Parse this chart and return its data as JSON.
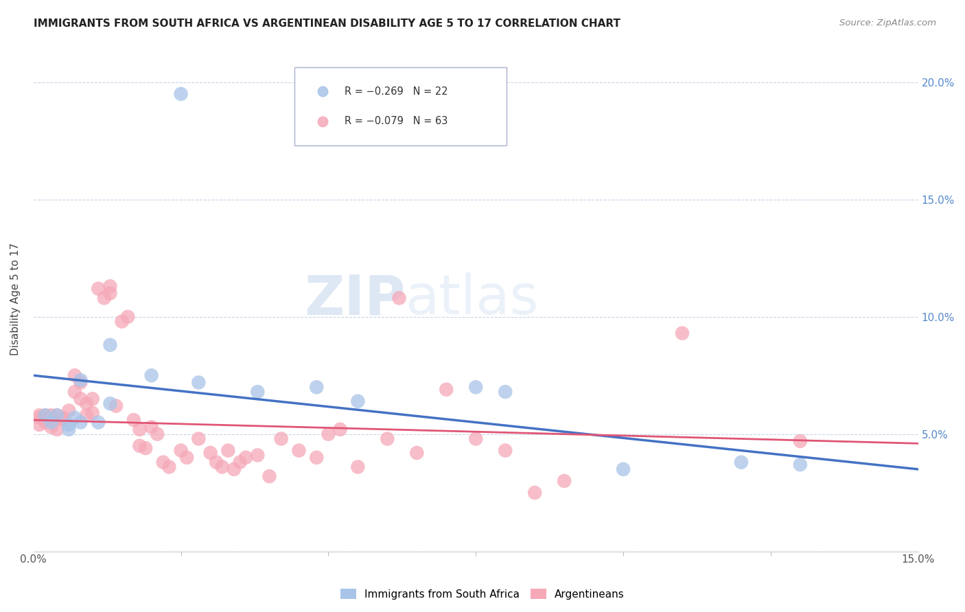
{
  "title": "IMMIGRANTS FROM SOUTH AFRICA VS ARGENTINEAN DISABILITY AGE 5 TO 17 CORRELATION CHART",
  "source": "Source: ZipAtlas.com",
  "ylabel": "Disability Age 5 to 17",
  "xlim": [
    0.0,
    0.15
  ],
  "ylim": [
    0.0,
    0.215
  ],
  "xticks": [
    0.0,
    0.15
  ],
  "xtick_labels": [
    "0.0%",
    "15.0%"
  ],
  "xticks_minor": [
    0.025,
    0.05,
    0.075,
    0.1,
    0.125
  ],
  "yticks": [
    0.0,
    0.05,
    0.1,
    0.15,
    0.2
  ],
  "ytick_labels_right": [
    "",
    "5.0%",
    "10.0%",
    "15.0%",
    "20.0%"
  ],
  "legend_blue_r": "R = −0.269",
  "legend_blue_n": "N = 22",
  "legend_pink_r": "R = −0.079",
  "legend_pink_n": "N = 63",
  "blue_color": "#a8c4e8",
  "pink_color": "#f5a8b8",
  "blue_line_color": "#4472c4",
  "pink_line_color": "#e05575",
  "background_color": "#ffffff",
  "grid_color": "#c8d4e8",
  "watermark_zip": "ZIP",
  "watermark_atlas": "atlas",
  "blue_scatter_x": [
    0.025,
    0.013,
    0.008,
    0.004,
    0.003,
    0.002,
    0.007,
    0.006,
    0.006,
    0.008,
    0.011,
    0.013,
    0.02,
    0.028,
    0.038,
    0.048,
    0.055,
    0.075,
    0.08,
    0.1,
    0.12,
    0.13
  ],
  "blue_scatter_y": [
    0.195,
    0.088,
    0.073,
    0.058,
    0.055,
    0.058,
    0.057,
    0.054,
    0.052,
    0.055,
    0.055,
    0.063,
    0.075,
    0.072,
    0.068,
    0.07,
    0.064,
    0.07,
    0.068,
    0.035,
    0.038,
    0.037
  ],
  "pink_scatter_x": [
    0.001,
    0.001,
    0.001,
    0.002,
    0.002,
    0.003,
    0.003,
    0.004,
    0.004,
    0.005,
    0.005,
    0.006,
    0.007,
    0.007,
    0.008,
    0.008,
    0.009,
    0.009,
    0.01,
    0.01,
    0.011,
    0.012,
    0.013,
    0.013,
    0.014,
    0.015,
    0.016,
    0.017,
    0.018,
    0.018,
    0.019,
    0.02,
    0.021,
    0.022,
    0.023,
    0.025,
    0.026,
    0.028,
    0.03,
    0.031,
    0.032,
    0.033,
    0.034,
    0.035,
    0.036,
    0.038,
    0.04,
    0.042,
    0.045,
    0.048,
    0.05,
    0.052,
    0.055,
    0.06,
    0.062,
    0.065,
    0.07,
    0.075,
    0.08,
    0.085,
    0.09,
    0.11,
    0.13
  ],
  "pink_scatter_y": [
    0.054,
    0.057,
    0.058,
    0.055,
    0.058,
    0.053,
    0.058,
    0.052,
    0.058,
    0.057,
    0.056,
    0.06,
    0.075,
    0.068,
    0.065,
    0.072,
    0.058,
    0.063,
    0.059,
    0.065,
    0.112,
    0.108,
    0.11,
    0.113,
    0.062,
    0.098,
    0.1,
    0.056,
    0.045,
    0.052,
    0.044,
    0.053,
    0.05,
    0.038,
    0.036,
    0.043,
    0.04,
    0.048,
    0.042,
    0.038,
    0.036,
    0.043,
    0.035,
    0.038,
    0.04,
    0.041,
    0.032,
    0.048,
    0.043,
    0.04,
    0.05,
    0.052,
    0.036,
    0.048,
    0.108,
    0.042,
    0.069,
    0.048,
    0.043,
    0.025,
    0.03,
    0.093,
    0.047
  ],
  "blue_line_x0": 0.0,
  "blue_line_x1": 0.15,
  "blue_line_y0": 0.075,
  "blue_line_y1": 0.035,
  "pink_line_x0": 0.0,
  "pink_line_x1": 0.15,
  "pink_line_y0": 0.056,
  "pink_line_y1": 0.046
}
